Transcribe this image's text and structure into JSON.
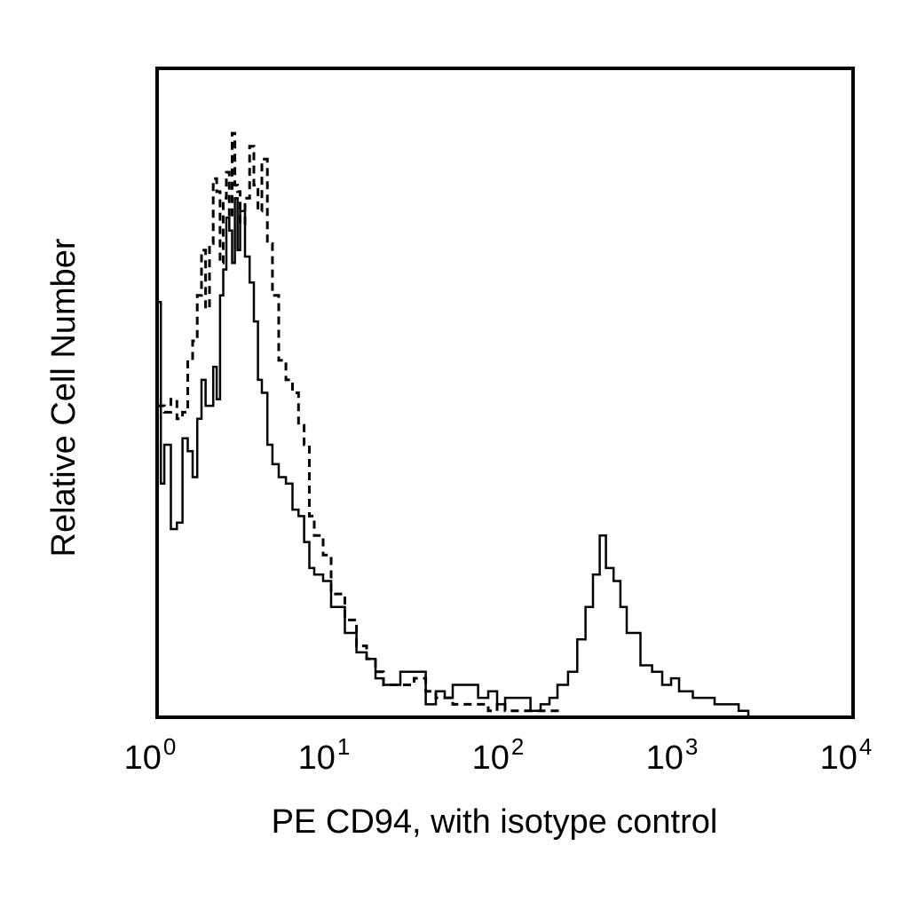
{
  "chart_data": {
    "type": "line",
    "title": "",
    "xlabel": "PE CD94, with isotype control",
    "ylabel": "Relative Cell Number",
    "x_scale": "log",
    "xlim": [
      1,
      10000
    ],
    "ylim": [
      0,
      100
    ],
    "grid": false,
    "legend": "none",
    "x_ticks": [
      {
        "base": "10",
        "exp": "0"
      },
      {
        "base": "10",
        "exp": "1"
      },
      {
        "base": "10",
        "exp": "2"
      },
      {
        "base": "10",
        "exp": "3"
      },
      {
        "base": "10",
        "exp": "4"
      }
    ],
    "series": [
      {
        "style": "solid",
        "color": "#000000",
        "x": [
          1.0,
          1.05,
          1.1,
          1.2,
          1.3,
          1.4,
          1.5,
          1.6,
          1.7,
          1.8,
          1.9,
          2.0,
          2.1,
          2.2,
          2.3,
          2.4,
          2.5,
          2.6,
          2.7,
          2.8,
          2.9,
          3.0,
          3.2,
          3.4,
          3.6,
          3.8,
          4.0,
          4.3,
          4.6,
          5.0,
          5.5,
          6.0,
          6.5,
          7.0,
          7.5,
          8.0,
          9.0,
          10.0,
          12.0,
          14.0,
          16.0,
          18.0,
          20.0,
          25.0,
          30.0,
          35.0,
          40.0,
          45.0,
          50.0,
          60.0,
          70.0,
          80.0,
          90.0,
          100.0,
          120.0,
          140.0,
          160.0,
          180.0,
          200.0,
          230.0,
          260.0,
          290.0,
          320.0,
          350.0,
          380.0,
          420.0,
          460.0,
          500.0,
          550.0,
          600.0,
          700.0,
          800.0,
          900.0,
          1000.0,
          1200.0,
          1400.0,
          1600.0,
          1800.0,
          2000.0,
          2200.0,
          2500.0
        ],
        "y": [
          64,
          36,
          42,
          29,
          30,
          43,
          41,
          37,
          46,
          52,
          48,
          48,
          54,
          49,
          65,
          69,
          77,
          75,
          70,
          80,
          72,
          78,
          71,
          67,
          61,
          52,
          50,
          42,
          39,
          37,
          36,
          32,
          31,
          27,
          23,
          22,
          21,
          17,
          13,
          10,
          9,
          6,
          5,
          7,
          7,
          2,
          4,
          3,
          5,
          5,
          3,
          4,
          2,
          3,
          3,
          1,
          2,
          3,
          5,
          7,
          12,
          17,
          22,
          28,
          23,
          21,
          17,
          13,
          13,
          8,
          7,
          5,
          6,
          4,
          3,
          3,
          2,
          2,
          2,
          1,
          0
        ]
      },
      {
        "style": "dashed",
        "color": "#000000",
        "x": [
          1.0,
          1.1,
          1.2,
          1.3,
          1.4,
          1.5,
          1.6,
          1.7,
          1.8,
          1.9,
          2.0,
          2.1,
          2.2,
          2.3,
          2.4,
          2.5,
          2.6,
          2.7,
          2.8,
          2.9,
          3.0,
          3.2,
          3.4,
          3.6,
          3.8,
          4.0,
          4.3,
          4.6,
          5.0,
          5.5,
          6.0,
          6.5,
          7.0,
          7.5,
          8.0,
          9.0,
          10.0,
          12.0,
          14.0,
          16.0,
          18.0,
          20.0,
          25.0,
          30.0,
          35.0,
          40.0,
          45.0,
          50.0,
          60.0,
          70.0,
          80.0,
          90.0,
          100.0,
          120.0,
          150.0,
          200.0,
          300.0,
          500.0,
          700.0,
          1000.0
        ],
        "y": [
          48,
          47,
          49,
          46,
          47,
          55,
          58,
          65,
          72,
          63,
          73,
          83,
          81,
          70,
          80,
          84,
          77,
          90,
          82,
          81,
          76,
          80,
          88,
          82,
          78,
          86,
          73,
          65,
          55,
          52,
          50,
          45,
          42,
          31,
          28,
          25,
          19,
          15,
          11,
          9,
          7,
          5,
          5,
          6,
          4,
          3,
          3,
          2,
          2,
          2,
          1,
          2,
          1,
          1,
          1,
          0,
          0,
          0,
          0,
          0
        ]
      }
    ]
  }
}
